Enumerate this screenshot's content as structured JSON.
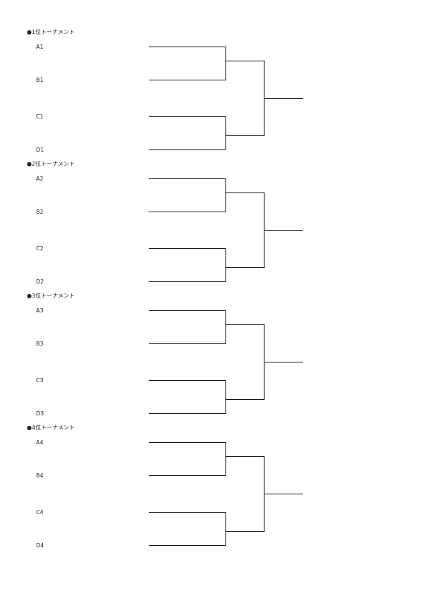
{
  "tournaments": [
    {
      "title": "●1位トーナメント",
      "teams": [
        "A1",
        "B1",
        "C1",
        "D1"
      ]
    },
    {
      "title": "●2位トーナメント",
      "teams": [
        "A2",
        "B2",
        "C2",
        "D2"
      ]
    },
    {
      "title": "●3位トーナメント",
      "teams": [
        "A3",
        "B3",
        "C3",
        "D3"
      ]
    },
    {
      "title": "●4位トーナメント",
      "teams": [
        "A4",
        "B4",
        "C4",
        "D4"
      ]
    }
  ]
}
